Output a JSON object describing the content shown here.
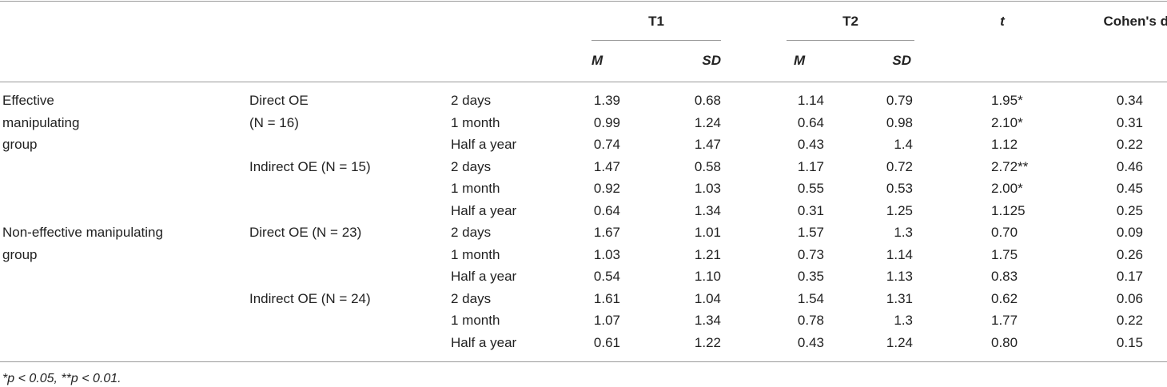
{
  "header": {
    "t1": "T1",
    "t2": "T2",
    "t": "t",
    "cohen": "Cohen's d",
    "m": "M",
    "sd": "SD"
  },
  "groups": [
    {
      "lines": [
        "Effective",
        "manipulating",
        "group"
      ]
    },
    {
      "lines": [
        "Non-effective manipulating",
        "group"
      ]
    }
  ],
  "subgroups": [
    {
      "lines": [
        "Direct OE",
        "(N = 16)"
      ]
    },
    {
      "lines": [
        "Indirect OE (N = 15)"
      ]
    },
    {
      "lines": [
        "Direct OE (N = 23)"
      ]
    },
    {
      "lines": [
        "Indirect OE (N = 24)"
      ]
    }
  ],
  "rows": [
    {
      "time": "2 days",
      "t1m": "1.39",
      "t1sd": "0.68",
      "t2m": "1.14",
      "t2sd": "0.79",
      "t": "1.95*",
      "d": "0.34"
    },
    {
      "time": "1 month",
      "t1m": "0.99",
      "t1sd": "1.24",
      "t2m": "0.64",
      "t2sd": "0.98",
      "t": "2.10*",
      "d": "0.31"
    },
    {
      "time": "Half a year",
      "t1m": "0.74",
      "t1sd": "1.47",
      "t2m": "0.43",
      "t2sd": "1.4",
      "t": "1.12",
      "d": "0.22"
    },
    {
      "time": "2 days",
      "t1m": "1.47",
      "t1sd": "0.58",
      "t2m": "1.17",
      "t2sd": "0.72",
      "t": "2.72**",
      "d": "0.46"
    },
    {
      "time": "1 month",
      "t1m": "0.92",
      "t1sd": "1.03",
      "t2m": "0.55",
      "t2sd": "0.53",
      "t": "2.00*",
      "d": "0.45"
    },
    {
      "time": "Half a year",
      "t1m": "0.64",
      "t1sd": "1.34",
      "t2m": "0.31",
      "t2sd": "1.25",
      "t": "1.125",
      "d": "0.25"
    },
    {
      "time": "2 days",
      "t1m": "1.67",
      "t1sd": "1.01",
      "t2m": "1.57",
      "t2sd": "1.3",
      "t": "0.70",
      "d": "0.09"
    },
    {
      "time": "1 month",
      "t1m": "1.03",
      "t1sd": "1.21",
      "t2m": "0.73",
      "t2sd": "1.14",
      "t": "1.75",
      "d": "0.26"
    },
    {
      "time": "Half a year",
      "t1m": "0.54",
      "t1sd": "1.10",
      "t2m": "0.35",
      "t2sd": "1.13",
      "t": "0.83",
      "d": "0.17"
    },
    {
      "time": "2 days",
      "t1m": "1.61",
      "t1sd": "1.04",
      "t2m": "1.54",
      "t2sd": "1.31",
      "t": "0.62",
      "d": "0.06"
    },
    {
      "time": "1 month",
      "t1m": "1.07",
      "t1sd": "1.34",
      "t2m": "0.78",
      "t2sd": "1.3",
      "t": "1.77",
      "d": "0.22"
    },
    {
      "time": "Half a year",
      "t1m": "0.61",
      "t1sd": "1.22",
      "t2m": "0.43",
      "t2sd": "1.24",
      "t": "0.80",
      "d": "0.15"
    }
  ],
  "footnote": "*p < 0.05, **p < 0.01."
}
